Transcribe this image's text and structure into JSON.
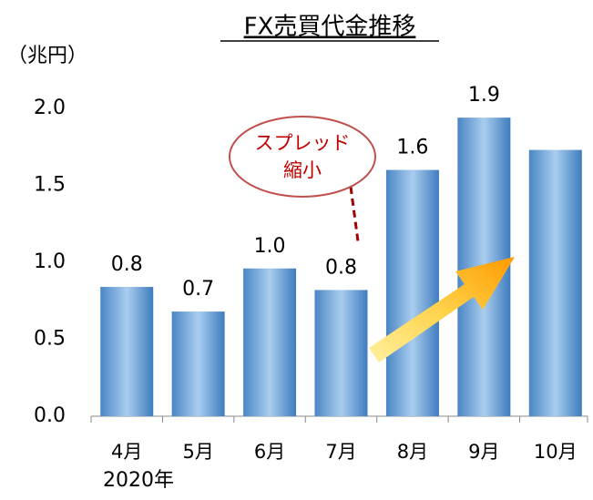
{
  "chart_data": {
    "type": "bar",
    "title": "FX売買代金推移",
    "ylabel": "（兆円）",
    "x_sublabel": "2020年",
    "categories": [
      "4月",
      "5月",
      "6月",
      "7月",
      "8月",
      "9月",
      "10月"
    ],
    "values": [
      0.84,
      0.68,
      0.96,
      0.82,
      1.6,
      1.94,
      1.73
    ],
    "value_labels": [
      "0.8",
      "0.7",
      "1.0",
      "0.8",
      "1.6",
      "1.9",
      null
    ],
    "color": "#5b9bd5",
    "ylim": [
      0,
      2
    ],
    "yticks": [
      {
        "value": 0,
        "label": "0.0"
      },
      0.5,
      {
        "value": 1,
        "label": "1.0"
      },
      1.5,
      {
        "value": 2,
        "label": "2.0"
      }
    ],
    "grid": false,
    "annotation": [
      "スプレッド",
      "縮小"
    ]
  }
}
